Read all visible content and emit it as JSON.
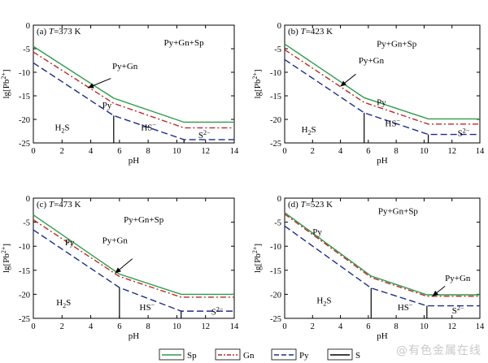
{
  "chart_data": [
    {
      "type": "line",
      "panel_label": "(a)",
      "temp_T": "T",
      "temp_value": "=373 K",
      "xlabel": "pH",
      "ylabel": "lg[Pb2+]",
      "xlim": [
        0,
        14
      ],
      "ylim": [
        -25,
        0
      ],
      "xticks": [
        0,
        2,
        4,
        6,
        8,
        10,
        12,
        14
      ],
      "yticks": [
        0,
        -5,
        -10,
        -15,
        -20,
        -25
      ],
      "series": [
        {
          "name": "Sp",
          "x": [
            0,
            5.6,
            10.5,
            14
          ],
          "y": [
            -4.5,
            -15.5,
            -20.6,
            -20.6
          ]
        },
        {
          "name": "Gn",
          "x": [
            0,
            5.6,
            10.5,
            14
          ],
          "y": [
            -5.7,
            -16.6,
            -21.8,
            -21.8
          ]
        },
        {
          "name": "Py",
          "x": [
            0,
            5.6,
            10.5,
            14
          ],
          "y": [
            -8.0,
            -19.2,
            -24.3,
            -24.3
          ]
        },
        {
          "name": "S",
          "x": [
            5.6,
            5.6
          ],
          "y": [
            -19.2,
            -25
          ]
        },
        {
          "name": "S",
          "x": [
            10.5,
            10.5
          ],
          "y": [
            -24.3,
            -25
          ]
        }
      ],
      "region_labels": [
        "Py+Gn+Sp",
        "Py+Gn",
        "Py",
        "H2S",
        "HS−",
        "S2−"
      ],
      "annotation": "Py+Gn"
    },
    {
      "type": "line",
      "panel_label": "(b)",
      "temp_T": "T",
      "temp_value": "=423 K",
      "xlabel": "pH",
      "ylabel": "lg[Pb2+]",
      "xlim": [
        0,
        14
      ],
      "ylim": [
        -25,
        0
      ],
      "xticks": [
        0,
        2,
        4,
        6,
        8,
        10,
        12,
        14
      ],
      "yticks": [
        0,
        -5,
        -10,
        -15,
        -20,
        -25
      ],
      "series": [
        {
          "name": "Sp",
          "x": [
            0,
            5.7,
            10.3,
            14
          ],
          "y": [
            -4.0,
            -15.4,
            -19.9,
            -19.9
          ]
        },
        {
          "name": "Gn",
          "x": [
            0,
            5.7,
            10.3,
            14
          ],
          "y": [
            -5.2,
            -16.4,
            -21.0,
            -21.0
          ]
        },
        {
          "name": "Py",
          "x": [
            0,
            5.7,
            10.3,
            14
          ],
          "y": [
            -7.3,
            -18.6,
            -23.2,
            -23.2
          ]
        },
        {
          "name": "S",
          "x": [
            5.7,
            5.7
          ],
          "y": [
            -18.6,
            -25
          ]
        },
        {
          "name": "S",
          "x": [
            10.3,
            10.3
          ],
          "y": [
            -23.2,
            -25
          ]
        }
      ],
      "region_labels": [
        "Py+Gn+Sp",
        "Py+Gn",
        "Py",
        "H2S",
        "HS−",
        "S2−"
      ],
      "annotation": "Py+Gn"
    },
    {
      "type": "line",
      "panel_label": "(c)",
      "temp_T": "T",
      "temp_value": "=473 K",
      "xlabel": "pH",
      "ylabel": "lg[Pb2+]",
      "xlim": [
        0,
        14
      ],
      "ylim": [
        -25,
        0
      ],
      "xticks": [
        0,
        2,
        4,
        6,
        8,
        10,
        12,
        14
      ],
      "yticks": [
        0,
        -5,
        -10,
        -15,
        -20,
        -25
      ],
      "series": [
        {
          "name": "Sp",
          "x": [
            0,
            6.0,
            10.3,
            14
          ],
          "y": [
            -3.5,
            -15.8,
            -20.0,
            -20.0
          ]
        },
        {
          "name": "Gn",
          "x": [
            0,
            6.0,
            10.3,
            14
          ],
          "y": [
            -4.5,
            -16.3,
            -20.6,
            -20.6
          ]
        },
        {
          "name": "Py",
          "x": [
            0,
            6.0,
            10.3,
            14
          ],
          "y": [
            -6.6,
            -18.6,
            -23.5,
            -23.5
          ]
        },
        {
          "name": "S",
          "x": [
            6.0,
            6.0
          ],
          "y": [
            -18.6,
            -25
          ]
        },
        {
          "name": "S",
          "x": [
            10.3,
            10.3
          ],
          "y": [
            -23.5,
            -25
          ]
        }
      ],
      "region_labels": [
        "Py+Gn+Sp",
        "Py+Gn",
        "Py",
        "H2S",
        "HS−",
        "S2−"
      ],
      "annotation": "Py+Gn"
    },
    {
      "type": "line",
      "panel_label": "(d)",
      "temp_T": "T",
      "temp_value": "=523 K",
      "xlabel": "pH",
      "ylabel": "lg[Pb2+]",
      "xlim": [
        0,
        14
      ],
      "ylim": [
        -25,
        0
      ],
      "xticks": [
        0,
        2,
        4,
        6,
        8,
        10,
        12,
        14
      ],
      "yticks": [
        0,
        -5,
        -10,
        -15,
        -20,
        -25
      ],
      "series": [
        {
          "name": "Sp",
          "x": [
            0,
            6.2,
            10.2,
            14
          ],
          "y": [
            -3.0,
            -16.2,
            -20.1,
            -20.1
          ]
        },
        {
          "name": "Gn",
          "x": [
            0,
            6.2,
            10.2,
            14
          ],
          "y": [
            -3.3,
            -16.5,
            -20.4,
            -20.4
          ]
        },
        {
          "name": "Py",
          "x": [
            0,
            6.2,
            10.2,
            14
          ],
          "y": [
            -5.8,
            -18.7,
            -22.4,
            -22.4
          ]
        },
        {
          "name": "S",
          "x": [
            6.2,
            6.2
          ],
          "y": [
            -18.7,
            -25
          ]
        },
        {
          "name": "S",
          "x": [
            10.2,
            10.2
          ],
          "y": [
            -22.4,
            -25
          ]
        }
      ],
      "region_labels": [
        "Py+Gn+Sp",
        "Py+Gn",
        "Py",
        "H2S",
        "HS−",
        "S2−"
      ],
      "annotation": "Py+Gn"
    }
  ],
  "legend": [
    {
      "name": "Sp",
      "color": "#2e9b4a",
      "dash": "solid"
    },
    {
      "name": "Gn",
      "color": "#c0282c",
      "dash": "dashdot"
    },
    {
      "name": "Py",
      "color": "#1c2c8c",
      "dash": "dashed"
    },
    {
      "name": "S",
      "color": "#000000",
      "dash": "solid"
    }
  ],
  "watermark": "@有色金属在线"
}
